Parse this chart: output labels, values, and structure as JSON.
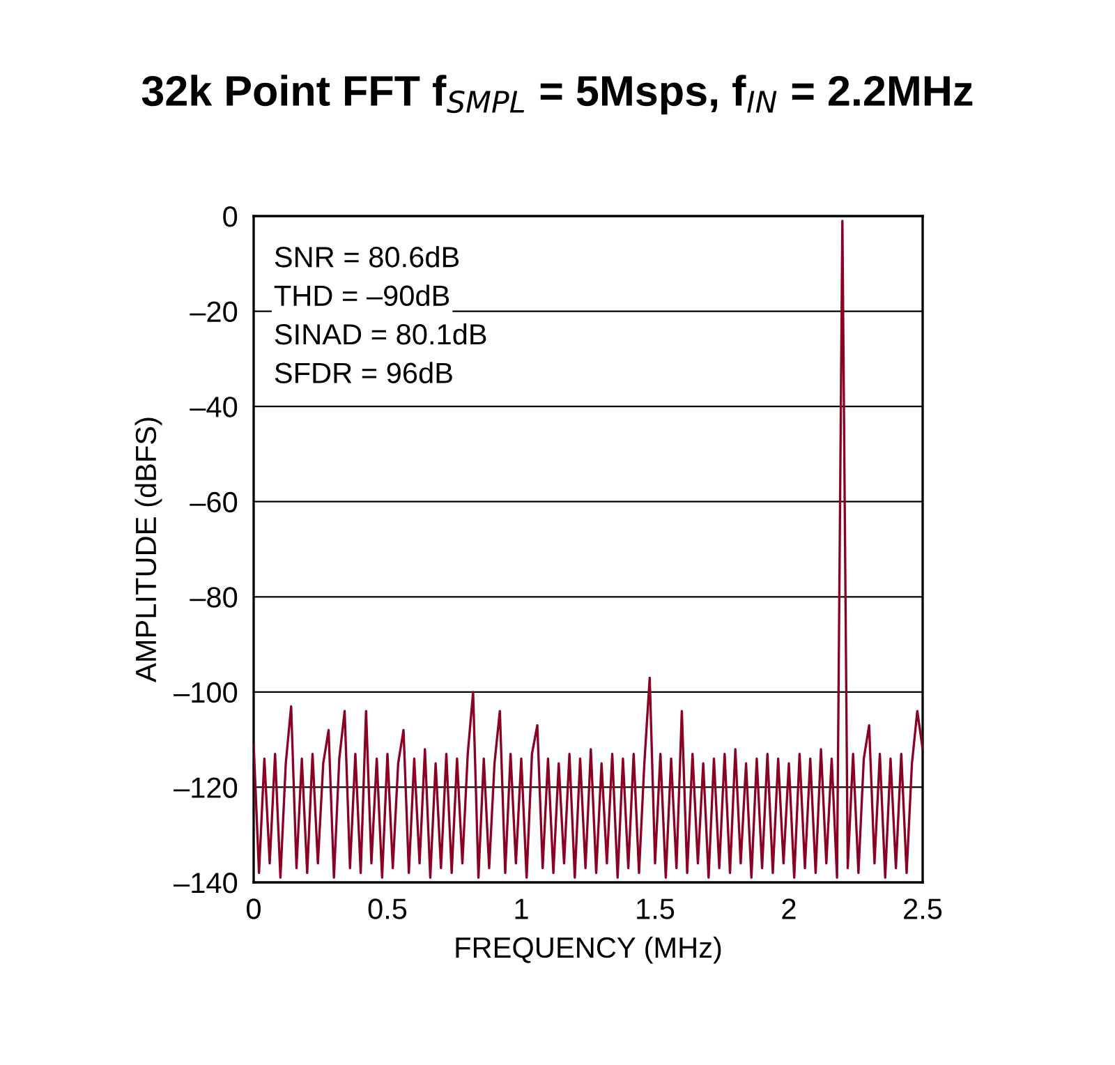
{
  "chart_data": {
    "type": "line",
    "title": "32k Point FFT f$_{SMPL}$ = 5Msps, f$_{IN}$ = 2.2MHz",
    "xlabel": "FREQUENCY (MHz)",
    "ylabel": "AMPLITUDE (dBFS)",
    "annotations": [
      "SNR = 80.6dB",
      "THD = –90dB",
      "SINAD = 80.1dB",
      "SFDR = 96dB"
    ],
    "xlim": [
      0,
      2.5
    ],
    "xticks": [
      0,
      0.5,
      1,
      1.5,
      2,
      2.5
    ],
    "ylim": [
      -140,
      0
    ],
    "yticks": [
      {
        "value": -140,
        "label": "–140"
      },
      {
        "value": -120,
        "label": "–120"
      },
      {
        "value": -100,
        "label": "–100"
      },
      {
        "value": -80,
        "label": "–80"
      },
      {
        "value": -60,
        "label": "–60"
      },
      {
        "value": -40,
        "label": "–40"
      },
      {
        "value": -20,
        "label": "–20"
      },
      0
    ],
    "grid": "y",
    "legend": false,
    "marker": "none",
    "line_style": "solid",
    "series": [
      {
        "color": "#8b0025",
        "x": [
          0,
          0.02,
          0.04,
          0.06,
          0.08,
          0.1,
          0.12,
          0.14,
          0.16,
          0.18,
          0.2,
          0.22,
          0.24,
          0.26,
          0.28,
          0.3,
          0.32,
          0.34,
          0.36,
          0.38,
          0.4,
          0.42,
          0.44,
          0.46,
          0.48,
          0.5,
          0.52,
          0.54,
          0.56,
          0.58,
          0.6,
          0.62,
          0.64,
          0.66,
          0.68,
          0.7,
          0.72,
          0.74,
          0.76,
          0.78,
          0.8,
          0.82,
          0.84,
          0.86,
          0.88,
          0.9,
          0.92,
          0.94,
          0.96,
          0.98,
          1,
          1.02,
          1.04,
          1.06,
          1.08,
          1.1,
          1.12,
          1.14,
          1.16,
          1.18,
          1.2,
          1.22,
          1.24,
          1.26,
          1.28,
          1.3,
          1.32,
          1.34,
          1.36,
          1.38,
          1.4,
          1.42,
          1.44,
          1.46,
          1.48,
          1.5,
          1.52,
          1.54,
          1.56,
          1.58,
          1.6,
          1.62,
          1.64,
          1.66,
          1.68,
          1.7,
          1.72,
          1.74,
          1.76,
          1.78,
          1.8,
          1.82,
          1.84,
          1.86,
          1.88,
          1.9,
          1.92,
          1.94,
          1.96,
          1.98,
          2,
          2.02,
          2.04,
          2.06,
          2.08,
          2.1,
          2.12,
          2.14,
          2.16,
          2.18,
          2.2,
          2.22,
          2.24,
          2.26,
          2.28,
          2.3,
          2.32,
          2.34,
          2.36,
          2.38,
          2.4,
          2.42,
          2.44,
          2.46,
          2.48,
          2.5
        ],
        "values": [
          -111,
          -138,
          -114,
          -136,
          -113,
          -139,
          -115,
          -103,
          -137,
          -114,
          -138,
          -113,
          -136,
          -115,
          -108,
          -139,
          -114,
          -104,
          -137,
          -113,
          -138,
          -104,
          -136,
          -114,
          -139,
          -113,
          -137,
          -115,
          -108,
          -138,
          -114,
          -136,
          -112,
          -139,
          -115,
          -137,
          -113,
          -138,
          -114,
          -136,
          -113,
          -100,
          -139,
          -114,
          -137,
          -115,
          -104,
          -138,
          -113,
          -136,
          -114,
          -139,
          -113,
          -107,
          -137,
          -114,
          -138,
          -115,
          -136,
          -113,
          -139,
          -114,
          -137,
          -112,
          -138,
          -115,
          -136,
          -113,
          -139,
          -114,
          -137,
          -113,
          -138,
          -115,
          -97,
          -136,
          -113,
          -139,
          -114,
          -137,
          -104,
          -138,
          -113,
          -136,
          -115,
          -139,
          -114,
          -137,
          -113,
          -138,
          -112,
          -136,
          -115,
          -139,
          -114,
          -137,
          -113,
          -138,
          -114,
          -136,
          -115,
          -139,
          -113,
          -137,
          -114,
          -138,
          -112,
          -136,
          -114,
          -139,
          -1,
          -137,
          -113,
          -138,
          -114,
          -107,
          -136,
          -113,
          -139,
          -114,
          -137,
          -113,
          -138,
          -115,
          -104,
          -112
        ]
      }
    ]
  }
}
